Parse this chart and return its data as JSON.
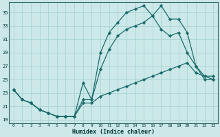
{
  "title": "",
  "xlabel": "Humidex (Indice chaleur)",
  "ylabel": "",
  "background_color": "#cce8e8",
  "line_color": "#1a6b6b",
  "grid_color": "#aad4d4",
  "xlim": [
    -0.5,
    23.5
  ],
  "ylim": [
    18.5,
    36.5
  ],
  "yticks": [
    19,
    21,
    23,
    25,
    27,
    29,
    31,
    33,
    35
  ],
  "xticks": [
    0,
    1,
    2,
    3,
    4,
    5,
    6,
    7,
    8,
    9,
    10,
    11,
    12,
    13,
    14,
    15,
    16,
    17,
    18,
    19,
    20,
    21,
    22,
    23
  ],
  "series1_x": [
    0,
    1,
    2,
    3,
    4,
    5,
    6,
    7,
    8,
    9,
    10,
    11,
    12,
    13,
    14,
    15,
    16,
    17,
    18,
    19,
    20,
    21,
    22,
    23
  ],
  "series1_y": [
    23.5,
    22.0,
    21.5,
    20.5,
    20.0,
    19.5,
    19.5,
    19.5,
    24.5,
    22.0,
    29.0,
    32.0,
    33.5,
    35.0,
    35.5,
    36.0,
    34.5,
    36.0,
    34.0,
    34.0,
    32.0,
    27.0,
    25.5,
    25.0
  ],
  "series2_x": [
    0,
    1,
    2,
    3,
    4,
    5,
    6,
    7,
    8,
    9,
    10,
    11,
    12,
    13,
    14,
    15,
    16,
    17,
    18,
    19,
    20,
    21,
    22,
    23
  ],
  "series2_y": [
    23.5,
    22.0,
    21.5,
    20.5,
    20.0,
    19.5,
    19.5,
    19.5,
    22.0,
    22.0,
    26.5,
    29.5,
    31.5,
    32.5,
    33.0,
    33.5,
    34.5,
    32.5,
    31.5,
    32.0,
    29.0,
    27.0,
    25.0,
    25.0
  ],
  "series3_x": [
    0,
    1,
    2,
    3,
    4,
    5,
    6,
    7,
    8,
    9,
    10,
    11,
    12,
    13,
    14,
    15,
    16,
    17,
    18,
    19,
    20,
    21,
    22,
    23
  ],
  "series3_y": [
    23.5,
    22.0,
    21.5,
    20.5,
    20.0,
    19.5,
    19.5,
    19.5,
    21.5,
    21.5,
    22.5,
    23.0,
    23.5,
    24.0,
    24.5,
    25.0,
    25.5,
    26.0,
    26.5,
    27.0,
    27.5,
    26.0,
    25.5,
    25.5
  ]
}
